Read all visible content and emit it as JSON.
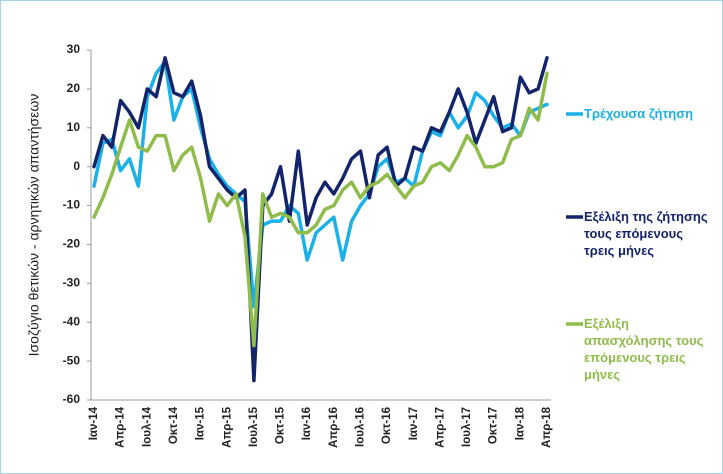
{
  "chart_data": {
    "type": "line",
    "y_label": "Ισοζύγιο θετικών - αρνητικών απαντήσεων",
    "categories": [
      "Ιαν-14",
      null,
      null,
      "Απρ-14",
      null,
      null,
      "Ιουλ-14",
      null,
      null,
      "Οκτ-14",
      null,
      null,
      "Ιαν-15",
      null,
      null,
      "Απρ-15",
      null,
      null,
      "Ιουλ-15",
      null,
      null,
      "Οκτ-15",
      null,
      null,
      "Ιαν-16",
      null,
      null,
      "Απρ-16",
      null,
      null,
      "Ιουλ-16",
      null,
      null,
      "Οκτ-16",
      null,
      null,
      "Ιαν-17",
      null,
      null,
      "Απρ-17",
      null,
      null,
      "Ιουλ-17",
      null,
      null,
      "Οκτ-17",
      null,
      null,
      "Ιαν-18",
      null,
      null,
      "Απρ-18"
    ],
    "series": [
      {
        "name": "Τρέχουσα ζήτηση",
        "color": "#1ab0e8",
        "values": [
          -5,
          6,
          7,
          -1,
          2,
          -5,
          18,
          24,
          27,
          12,
          18,
          20,
          10,
          2,
          -2,
          -5,
          -7,
          -9,
          -36,
          -15,
          -14,
          -14,
          -10,
          -12,
          -24,
          -17,
          -15,
          -13,
          -24,
          -14,
          -10,
          -7,
          0,
          2,
          -4,
          -3,
          -5,
          4,
          9,
          8,
          14,
          10,
          13,
          19,
          17,
          13,
          10,
          11,
          8,
          14,
          15,
          16
        ]
      },
      {
        "name": "Εξέλιξη της ζήτησης τους επόμενους τρεις μήνες",
        "color": "#14246b",
        "values": [
          0,
          8,
          5,
          17,
          14,
          10,
          20,
          18,
          28,
          19,
          18,
          22,
          13,
          0,
          -3,
          -6,
          -8,
          -6,
          -55,
          -10,
          -7,
          0,
          -14,
          4,
          -15,
          -8,
          -4,
          -7,
          -3,
          2,
          4,
          -8,
          3,
          5,
          -5,
          -3,
          5,
          4,
          10,
          9,
          14,
          20,
          14,
          6,
          12,
          18,
          9,
          10,
          23,
          19,
          20,
          28
        ]
      },
      {
        "name": "Εξέλιξη απασχόλησης τους επόμενους τρεις μήνες",
        "color": "#8fbc4a",
        "values": [
          -13,
          -8,
          -2,
          5,
          12,
          5,
          4,
          8,
          8,
          -1,
          3,
          5,
          -3,
          -14,
          -7,
          -10,
          -7,
          -18,
          -46,
          -7,
          -13,
          -12,
          -13,
          -17,
          -17,
          -15,
          -11,
          -10,
          -6,
          -4,
          -8,
          -5,
          -4,
          -2,
          -5,
          -8,
          -5,
          -4,
          0,
          1,
          -1,
          3,
          8,
          5,
          0,
          0,
          1,
          7,
          8,
          15,
          12,
          24
        ]
      }
    ],
    "ylim": [
      -60,
      30
    ],
    "yticks": [
      -60,
      -50,
      -40,
      -30,
      -20,
      -10,
      0,
      10,
      20,
      30
    ],
    "grid": false
  }
}
